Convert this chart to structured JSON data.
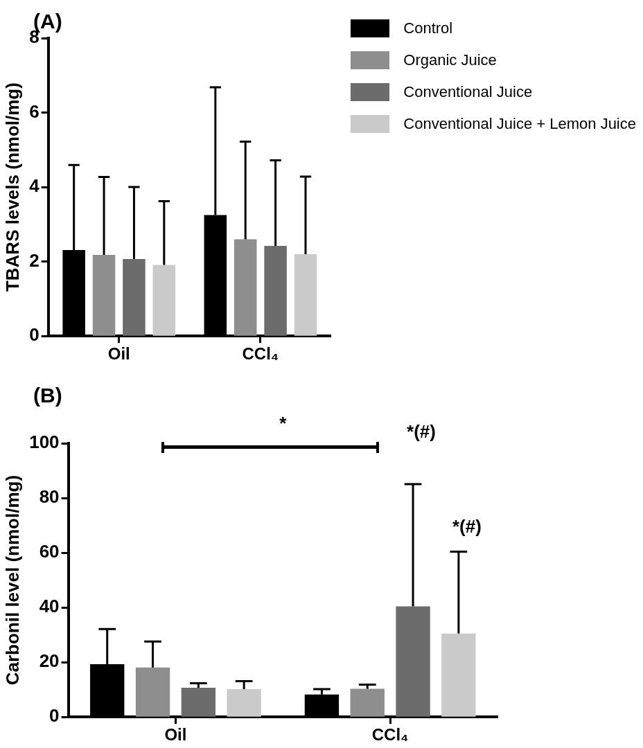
{
  "chart_data": [
    {
      "type": "bar",
      "title": "(A)",
      "ylabel": "TBARS levels (nmol/mg)",
      "categories": [
        "Oil",
        "CCl₄"
      ],
      "ylim": [
        0,
        8
      ],
      "yticks": [
        0,
        2,
        4,
        6,
        8
      ],
      "grid": false,
      "legend": "top right",
      "series": [
        {
          "name": "Control",
          "color": "#000000",
          "values": [
            2.31,
            3.25
          ],
          "errors": [
            [
              2.31,
              4.59
            ],
            [
              3.25,
              6.68
            ]
          ]
        },
        {
          "name": "Organic Juice",
          "color": "#8e8e8e",
          "values": [
            2.18,
            2.6
          ],
          "errors": [
            [
              2.18,
              4.27
            ],
            [
              2.6,
              5.22
            ]
          ]
        },
        {
          "name": "Conventional Juice",
          "color": "#6c6c6c",
          "values": [
            2.07,
            2.42
          ],
          "errors": [
            [
              2.07,
              4.0
            ],
            [
              2.42,
              4.72
            ]
          ]
        },
        {
          "name": "Conventional Juice + Lemon Juice",
          "color": "#cacaca",
          "values": [
            1.91,
            2.2
          ],
          "errors": [
            [
              1.91,
              3.62
            ],
            [
              2.2,
              4.28
            ]
          ]
        }
      ]
    },
    {
      "type": "bar",
      "title": "(B)",
      "ylabel": "Carbonil level (nmol/mg)",
      "categories": [
        "Oil",
        "CCl₄"
      ],
      "ylim": [
        0,
        100
      ],
      "yticks": [
        0,
        20,
        40,
        60,
        80,
        100
      ],
      "grid": false,
      "legend": false,
      "annotations": [
        "*",
        "*(#)",
        "*(#)"
      ],
      "series": [
        {
          "color": "#000000",
          "values": [
            19.3,
            8.2
          ],
          "errors": [
            [
              19.3,
              32.1
            ],
            [
              8.2,
              10.2
            ]
          ]
        },
        {
          "color": "#8e8e8e",
          "values": [
            18.1,
            10.3
          ],
          "errors": [
            [
              18.1,
              27.6
            ],
            [
              10.3,
              11.8
            ]
          ]
        },
        {
          "color": "#6c6c6c",
          "values": [
            10.7,
            40.4
          ],
          "errors": [
            [
              10.7,
              12.3
            ],
            [
              40.4,
              85.1
            ]
          ]
        },
        {
          "color": "#cacaca",
          "values": [
            10.2,
            30.5
          ],
          "errors": [
            [
              10.2,
              13.1
            ],
            [
              30.5,
              60.4
            ]
          ]
        }
      ]
    }
  ]
}
